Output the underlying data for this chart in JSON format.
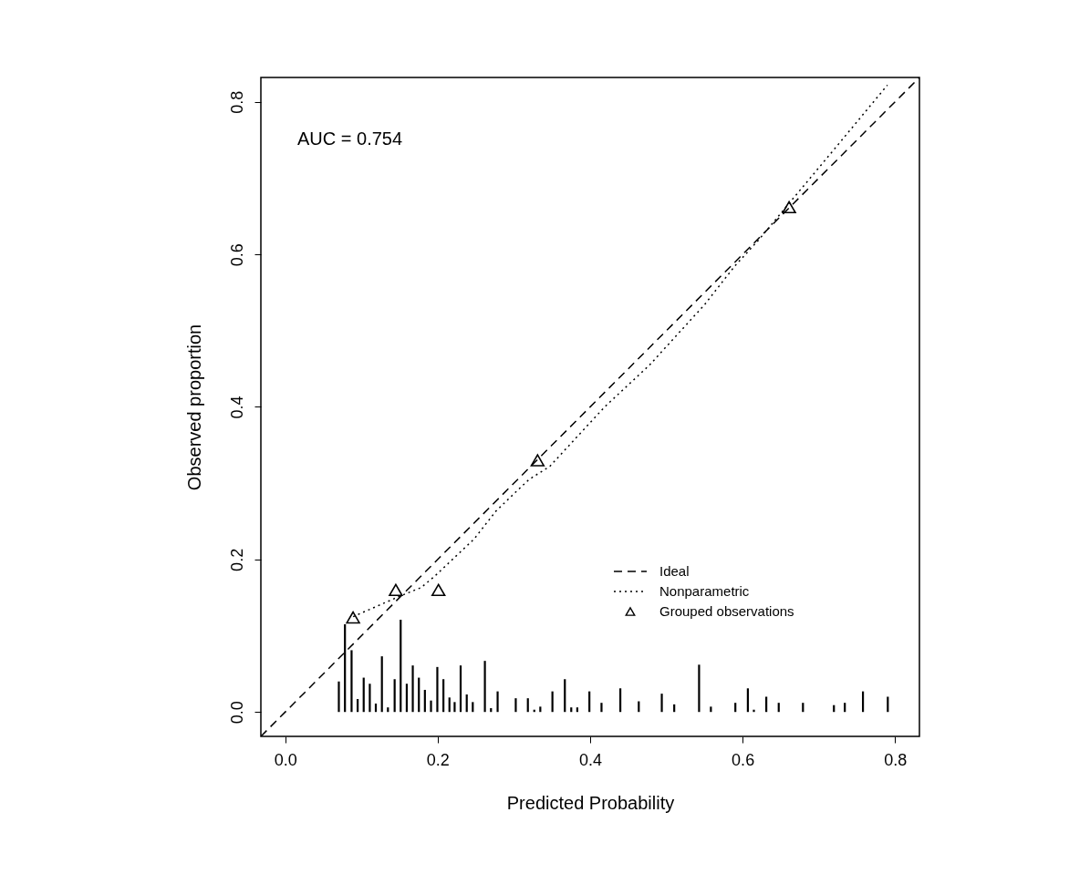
{
  "chart_data": {
    "type": "line",
    "xlabel": "Predicted Probability",
    "ylabel": "Observed proportion",
    "xlim": [
      -0.032,
      0.832
    ],
    "ylim": [
      -0.032,
      0.832
    ],
    "xticks": [
      {
        "value": 0,
        "label": "0.0"
      },
      0.2,
      0.4,
      0.6,
      0.8
    ],
    "yticks": [
      {
        "value": 0,
        "label": "0.0"
      },
      0.2,
      0.4,
      0.6,
      0.8
    ],
    "grid": false,
    "legend": "right",
    "annotations": [
      "AUC =  0.754"
    ],
    "series": [
      {
        "name": "Ideal",
        "line_style": "dashed",
        "color": "#000000",
        "x": [
          -0.032,
          0.832
        ],
        "values": [
          -0.032,
          0.832
        ]
      },
      {
        "name": "Nonparametric",
        "line_style": "dotted",
        "color": "#000000",
        "x": [
          0.089,
          0.153,
          0.178,
          0.196,
          0.248,
          0.276,
          0.304,
          0.32,
          0.347,
          0.419,
          0.478,
          0.55,
          0.59,
          0.622,
          0.661,
          0.717,
          0.79
        ],
        "values": [
          0.125,
          0.153,
          0.163,
          0.178,
          0.227,
          0.263,
          0.29,
          0.305,
          0.322,
          0.4,
          0.455,
          0.534,
          0.585,
          0.62,
          0.667,
          0.734,
          0.822
        ]
      },
      {
        "name": "Grouped observations",
        "type": "scatter",
        "marker": "triangle",
        "color": "#000000",
        "x": [
          0.089,
          0.145,
          0.201,
          0.331,
          0.661
        ],
        "values": [
          0.124,
          0.16,
          0.16,
          0.33,
          0.662
        ]
      },
      {
        "type": "bar",
        "color": "#000000",
        "x": [
          0.0703,
          0.0783,
          0.087,
          0.095,
          0.1029,
          0.1109,
          0.1188,
          0.1268,
          0.1347,
          0.1435,
          0.1514,
          0.1594,
          0.1673,
          0.1753,
          0.1832,
          0.1912,
          0.1995,
          0.2075,
          0.2154,
          0.2222,
          0.2301,
          0.2381,
          0.246,
          0.2619,
          0.2699,
          0.2786,
          0.3024,
          0.3183,
          0.3267,
          0.3346,
          0.3505,
          0.3668,
          0.3752,
          0.3831,
          0.399,
          0.4149,
          0.4396,
          0.4638,
          0.494,
          0.5103,
          0.5429,
          0.5584,
          0.5905,
          0.6069,
          0.6148,
          0.6311,
          0.6474,
          0.6792,
          0.7198,
          0.7341,
          0.7579,
          0.7905
        ],
        "values": [
          0.04,
          0.115,
          0.081,
          0.017,
          0.045,
          0.037,
          0.011,
          0.073,
          0.006,
          0.043,
          0.121,
          0.037,
          0.061,
          0.045,
          0.029,
          0.015,
          0.059,
          0.043,
          0.019,
          0.013,
          0.061,
          0.023,
          0.013,
          0.067,
          0.005,
          0.027,
          0.018,
          0.018,
          0.003,
          0.007,
          0.027,
          0.043,
          0.006,
          0.006,
          0.027,
          0.012,
          0.031,
          0.014,
          0.024,
          0.01,
          0.062,
          0.007,
          0.012,
          0.031,
          0.003,
          0.02,
          0.012,
          0.012,
          0.009,
          0.012,
          0.027,
          0.02
        ]
      }
    ]
  }
}
